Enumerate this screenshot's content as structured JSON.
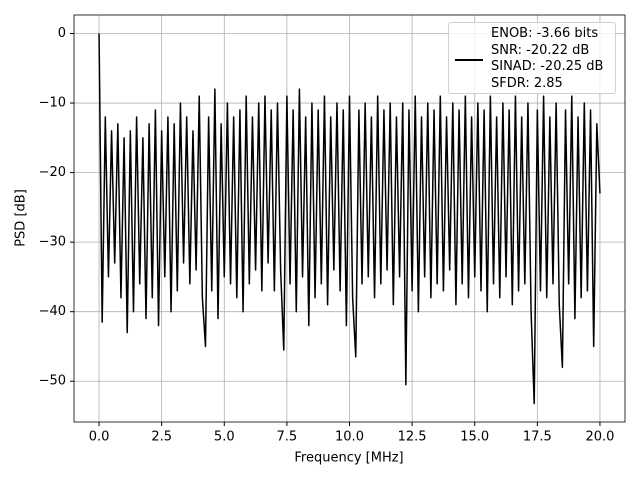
{
  "chart_data": {
    "type": "line",
    "xlabel": "Frequency [MHz]",
    "ylabel": "PSD [dB]",
    "xlim": [
      -1,
      21
    ],
    "ylim": [
      -55.86,
      2.66
    ],
    "xticks": [
      {
        "value": 0,
        "label": "0.0"
      },
      2.5,
      {
        "value": 5,
        "label": "5.0"
      },
      7.5,
      {
        "value": 10,
        "label": "10.0"
      },
      12.5,
      {
        "value": 15,
        "label": "15.0"
      },
      17.5,
      {
        "value": 20,
        "label": "20.0"
      }
    ],
    "yticks": [
      0,
      {
        "value": -10,
        "label": "−10"
      },
      {
        "value": -20,
        "label": "−20"
      },
      {
        "value": -30,
        "label": "−30"
      },
      {
        "value": -40,
        "label": "−40"
      },
      {
        "value": -50,
        "label": "−50"
      }
    ],
    "grid": true,
    "legend": "upper right",
    "x": [
      0,
      0.125,
      0.25,
      0.375,
      0.5,
      0.625,
      0.75,
      0.875,
      1,
      1.125,
      1.25,
      1.375,
      1.5,
      1.625,
      1.75,
      1.875,
      2,
      2.125,
      2.25,
      2.375,
      2.5,
      2.625,
      2.75,
      2.875,
      3,
      3.125,
      3.25,
      3.375,
      3.5,
      3.625,
      3.75,
      3.875,
      4,
      4.125,
      4.25,
      4.375,
      4.5,
      4.625,
      4.75,
      4.875,
      5,
      5.125,
      5.25,
      5.375,
      5.5,
      5.625,
      5.75,
      5.875,
      6,
      6.125,
      6.25,
      6.375,
      6.5,
      6.625,
      6.75,
      6.875,
      7,
      7.125,
      7.25,
      7.375,
      7.5,
      7.625,
      7.75,
      7.875,
      8,
      8.125,
      8.25,
      8.375,
      8.5,
      8.625,
      8.75,
      8.875,
      9,
      9.125,
      9.25,
      9.375,
      9.5,
      9.625,
      9.75,
      9.875,
      10,
      10.125,
      10.25,
      10.375,
      10.5,
      10.625,
      10.75,
      10.875,
      11,
      11.125,
      11.25,
      11.375,
      11.5,
      11.625,
      11.75,
      11.875,
      12,
      12.125,
      12.25,
      12.375,
      12.5,
      12.625,
      12.75,
      12.875,
      13,
      13.125,
      13.25,
      13.375,
      13.5,
      13.625,
      13.75,
      13.875,
      14,
      14.125,
      14.25,
      14.375,
      14.5,
      14.625,
      14.75,
      14.875,
      15,
      15.125,
      15.25,
      15.375,
      15.5,
      15.625,
      15.75,
      15.875,
      16,
      16.125,
      16.25,
      16.375,
      16.5,
      16.625,
      16.75,
      16.875,
      17,
      17.125,
      17.25,
      17.375,
      17.5,
      17.625,
      17.75,
      17.875,
      18,
      18.125,
      18.25,
      18.375,
      18.5,
      18.625,
      18.75,
      18.875,
      19,
      19.125,
      19.25,
      19.375,
      19.5,
      19.625,
      19.75,
      19.875,
      20
    ],
    "series": [
      {
        "name": "ENOB: -3.66 bits\nSNR: -20.22 dB\nSINAD: -20.25 dB\nSFDR: 2.85",
        "color": "#000000",
        "values": [
          0,
          -41.5,
          -12,
          -35,
          -14,
          -33,
          -13,
          -38,
          -15,
          -43,
          -14,
          -40,
          -12,
          -36,
          -15,
          -41,
          -13,
          -38,
          -11,
          -42,
          -14,
          -35,
          -12,
          -40,
          -13,
          -37,
          -10,
          -33,
          -12,
          -36,
          -14,
          -34,
          -9,
          -38,
          -45,
          -12,
          -37,
          -8,
          -41,
          -13,
          -35,
          -10,
          -36,
          -12,
          -38,
          -11,
          -40,
          -9,
          -36,
          -12,
          -34,
          -10,
          -37,
          -9,
          -33,
          -11,
          -37,
          -10,
          -34,
          -45.5,
          -9,
          -36,
          -11,
          -40,
          -8,
          -35,
          -12,
          -42,
          -10,
          -38,
          -11,
          -36,
          -9,
          -39,
          -12,
          -34,
          -10,
          -37,
          -11,
          -42,
          -9,
          -38,
          -46.5,
          -11,
          -36,
          -10,
          -35,
          -12,
          -38,
          -9,
          -36,
          -11,
          -34,
          -10,
          -39,
          -12,
          -35,
          -10,
          -50.5,
          -11,
          -37,
          -9,
          -40,
          -12,
          -35,
          -10,
          -38,
          -11,
          -36,
          -9,
          -37,
          -12,
          -34,
          -10,
          -39,
          -11,
          -36,
          -9,
          -38,
          -12,
          -35,
          -10,
          -37,
          -11,
          -40,
          -9,
          -36,
          -12,
          -38,
          -10,
          -35,
          -11,
          -39,
          -9,
          -37,
          -12,
          -36,
          -10,
          -40,
          -53.2,
          -11,
          -37,
          -9,
          -38,
          -12,
          -36,
          -10,
          -39,
          -48,
          -11,
          -36,
          -9,
          -41,
          -12,
          -38,
          -10,
          -37,
          -11,
          -45,
          -13,
          -23
        ]
      }
    ]
  }
}
